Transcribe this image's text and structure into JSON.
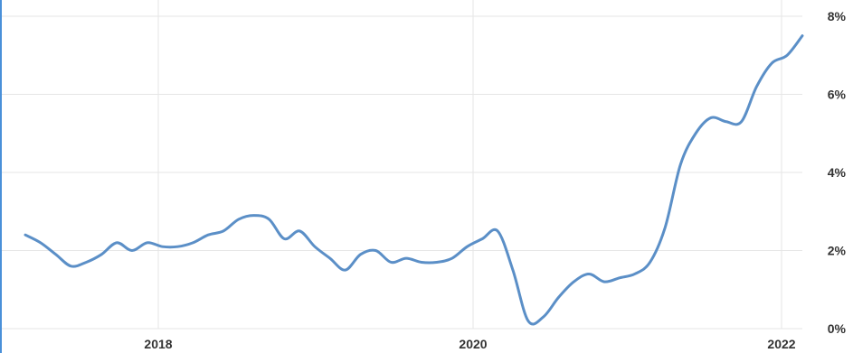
{
  "chart_data": {
    "type": "line",
    "title": "",
    "xlabel": "",
    "ylabel": "",
    "x_ticks": [
      "2018",
      "2020",
      "2022"
    ],
    "y_ticks": [
      "0%",
      "2%",
      "4%",
      "6%",
      "8%"
    ],
    "ylim": [
      0,
      8
    ],
    "xlim": [
      2017.0,
      2022.1
    ],
    "grid": true,
    "legend": "none",
    "line_color": "#5b8fc7",
    "series": [
      {
        "x": [
          2017.0,
          2017.1,
          2017.2,
          2017.3,
          2017.4,
          2017.5,
          2017.6,
          2017.7,
          2017.8,
          2017.9,
          2018.0,
          2018.1,
          2018.2,
          2018.3,
          2018.4,
          2018.5,
          2018.6,
          2018.7,
          2018.8,
          2018.9,
          2019.0,
          2019.1,
          2019.2,
          2019.3,
          2019.4,
          2019.5,
          2019.6,
          2019.7,
          2019.8,
          2019.9,
          2020.0,
          2020.1,
          2020.2,
          2020.3,
          2020.4,
          2020.5,
          2020.6,
          2020.7,
          2020.8,
          2020.9,
          2021.0,
          2021.1,
          2021.2,
          2021.3,
          2021.4,
          2021.5,
          2021.6,
          2021.7,
          2021.8,
          2021.9,
          2022.0,
          2022.1
        ],
        "values": [
          2.4,
          2.2,
          1.9,
          1.6,
          1.7,
          1.9,
          2.2,
          2.0,
          2.2,
          2.1,
          2.1,
          2.2,
          2.4,
          2.5,
          2.8,
          2.9,
          2.8,
          2.3,
          2.5,
          2.1,
          1.8,
          1.5,
          1.9,
          2.0,
          1.7,
          1.8,
          1.7,
          1.7,
          1.8,
          2.1,
          2.3,
          2.5,
          1.5,
          0.2,
          0.3,
          0.8,
          1.2,
          1.4,
          1.2,
          1.3,
          1.4,
          1.7,
          2.6,
          4.2,
          5.0,
          5.4,
          5.3,
          5.3,
          6.2,
          6.8,
          7.0,
          7.5
        ]
      }
    ]
  }
}
